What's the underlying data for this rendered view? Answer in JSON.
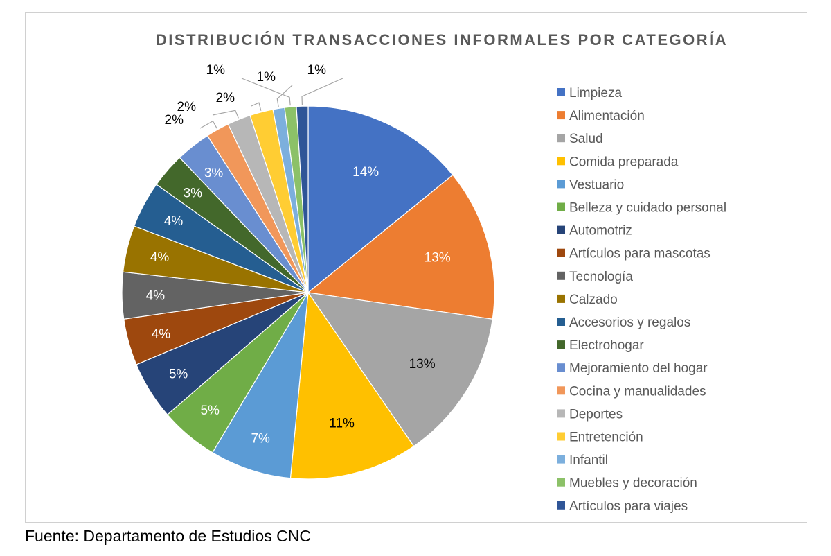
{
  "source": "Fuente: Departamento de Estudios CNC",
  "chart_data": {
    "type": "pie",
    "title": "DISTRIBUCIÓN TRANSACCIONES INFORMALES POR CATEGORÍA",
    "legend_position": "right",
    "slices": [
      {
        "label": "Limpieza",
        "value": 14,
        "display": "14%",
        "color": "#4472c4"
      },
      {
        "label": "Alimentación",
        "value": 13,
        "display": "13%",
        "color": "#ed7d31"
      },
      {
        "label": "Salud",
        "value": 13,
        "display": "13%",
        "color": "#a5a5a5"
      },
      {
        "label": "Comida preparada",
        "value": 11,
        "display": "11%",
        "color": "#ffc000"
      },
      {
        "label": "Vestuario",
        "value": 7,
        "display": "7%",
        "color": "#5b9bd5"
      },
      {
        "label": "Belleza y cuidado personal",
        "value": 5,
        "display": "5%",
        "color": "#70ad47"
      },
      {
        "label": "Automotriz",
        "value": 5,
        "display": "5%",
        "color": "#264478"
      },
      {
        "label": "Artículos para mascotas",
        "value": 4,
        "display": "4%",
        "color": "#9e480e"
      },
      {
        "label": "Tecnología",
        "value": 4,
        "display": "4%",
        "color": "#636363"
      },
      {
        "label": "Calzado",
        "value": 4,
        "display": "4%",
        "color": "#997300"
      },
      {
        "label": "Accesorios y regalos",
        "value": 4,
        "display": "4%",
        "color": "#255e91"
      },
      {
        "label": "Electrohogar",
        "value": 3,
        "display": "3%",
        "color": "#43682b"
      },
      {
        "label": "Mejoramiento del hogar",
        "value": 3,
        "display": "3%",
        "color": "#698ed0"
      },
      {
        "label": "Cocina y manualidades",
        "value": 2,
        "display": "2%",
        "color": "#f1975a"
      },
      {
        "label": "Deportes",
        "value": 2,
        "display": "2%",
        "color": "#b7b7b7"
      },
      {
        "label": "Entretención",
        "value": 2,
        "display": "2%",
        "color": "#ffcd33"
      },
      {
        "label": "Infantil",
        "value": 1,
        "display": "1%",
        "color": "#7cafdd"
      },
      {
        "label": "Muebles y decoración",
        "value": 1,
        "display": "1%",
        "color": "#8cc168"
      },
      {
        "label": "Artículos para viajes",
        "value": 1,
        "display": "1%",
        "color": "#2f5597"
      }
    ]
  }
}
